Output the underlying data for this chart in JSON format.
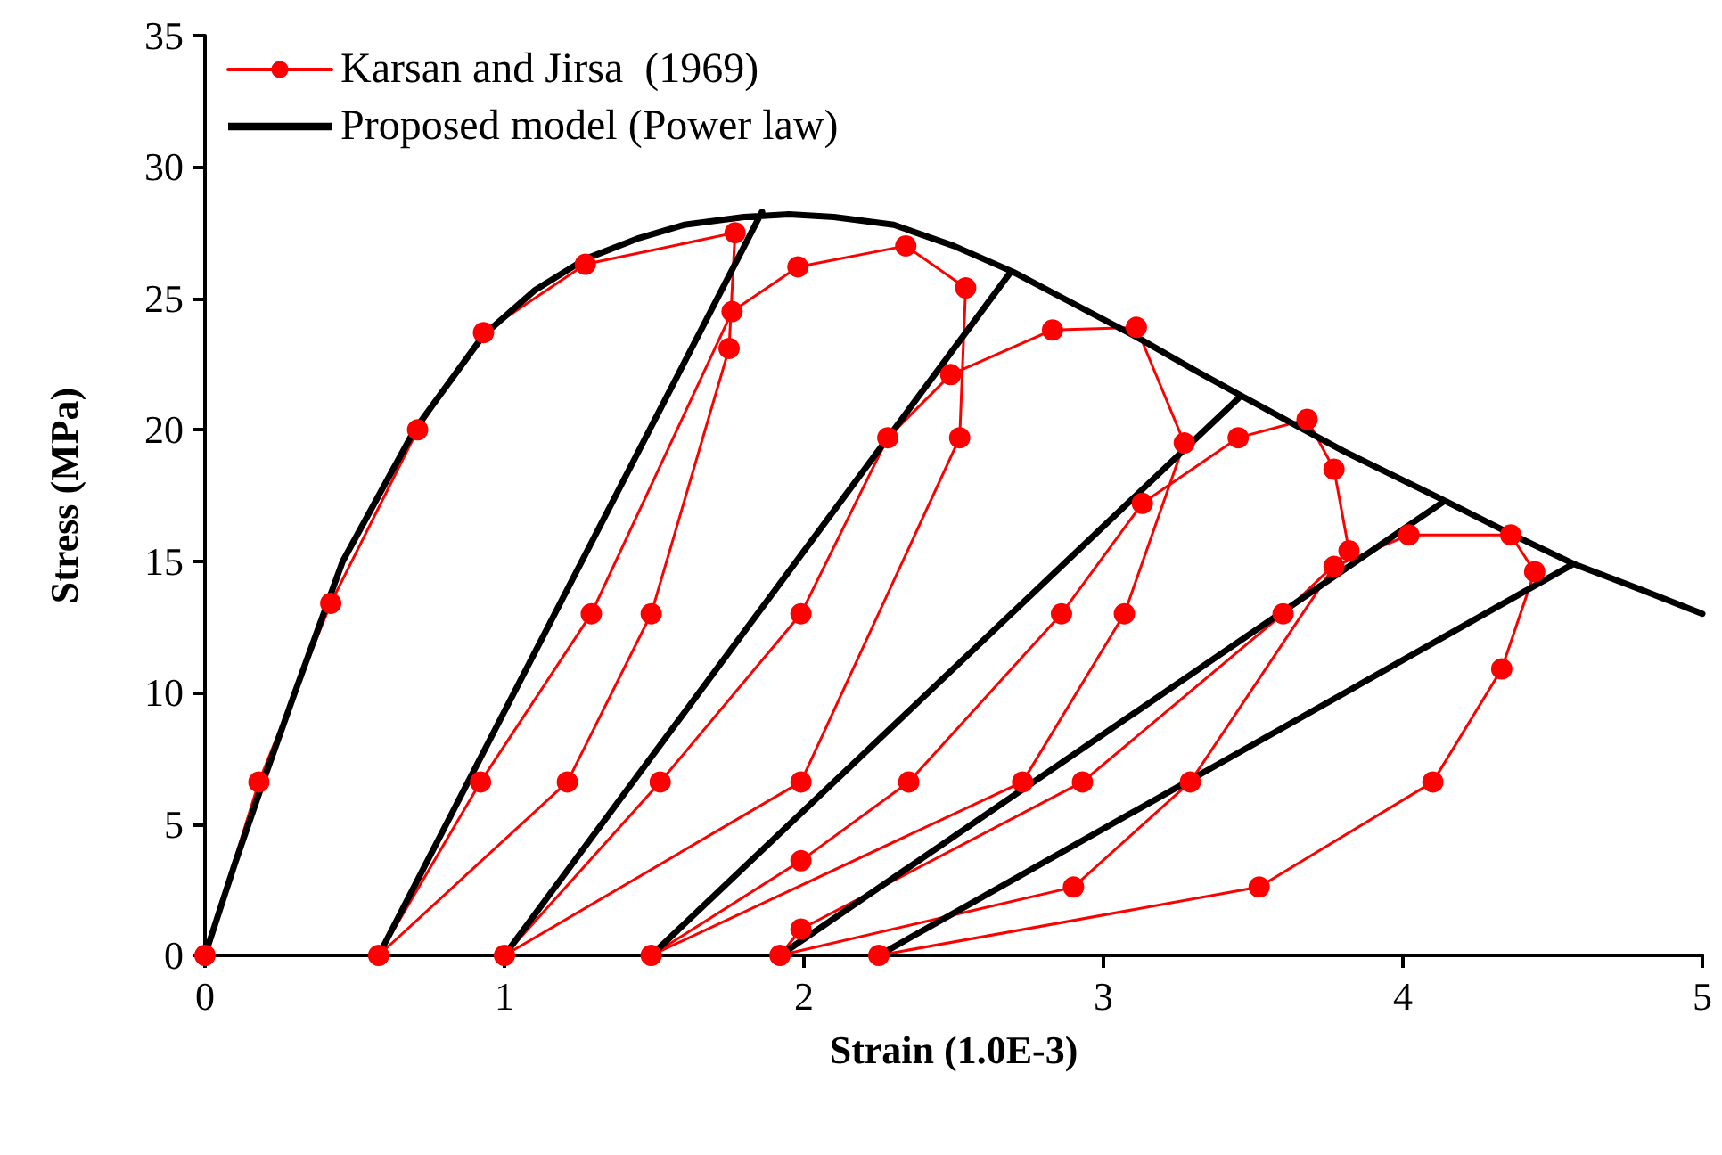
{
  "chart_data": {
    "type": "line",
    "xlabel": "Strain (1.0E-3)",
    "ylabel": "Stress (MPa)",
    "xlim": [
      0,
      5
    ],
    "xticks": [
      0,
      1,
      2,
      3,
      4,
      5
    ],
    "ylim": [
      0,
      35
    ],
    "yticks": [
      0,
      5,
      10,
      15,
      20,
      25,
      30,
      35
    ],
    "grid": false,
    "legend": "top left",
    "line_style": "solid",
    "series": [
      {
        "name": "Karsan and Jirsa  (1969)",
        "color": "#ff0000",
        "marker": "circle",
        "x": [
          0,
          0.18,
          0.42,
          0.71,
          0.93,
          1.27,
          1.77,
          1.75,
          1.49,
          1.21,
          0.58,
          0.92,
          1.29,
          1.76,
          1.98,
          2.34,
          2.54,
          2.52,
          1.99,
          1.0,
          1.52,
          1.99,
          2.28,
          2.49,
          2.83,
          3.11,
          3.27,
          3.07,
          2.73,
          1.49,
          1.99,
          2.35,
          2.86,
          3.13,
          3.45,
          3.68,
          3.77,
          3.82,
          3.6,
          2.93,
          1.99,
          1.92,
          2.9,
          3.29,
          3.77,
          4.02,
          4.36,
          4.44,
          4.33,
          4.1,
          3.52,
          2.25
        ],
        "values": [
          0,
          6.6,
          13.4,
          20.0,
          23.7,
          26.3,
          27.5,
          23.1,
          13.0,
          6.6,
          0,
          6.6,
          13.0,
          24.5,
          26.2,
          27.0,
          25.4,
          19.7,
          6.6,
          0,
          6.6,
          13.0,
          19.7,
          22.1,
          23.8,
          23.9,
          19.5,
          13.0,
          6.6,
          0,
          3.6,
          6.6,
          13.0,
          17.2,
          19.7,
          20.4,
          18.5,
          15.4,
          13.0,
          6.6,
          1.0,
          0,
          2.6,
          6.6,
          14.8,
          16.0,
          16.0,
          14.6,
          10.9,
          6.6,
          2.6,
          0
        ]
      },
      {
        "name": "Proposed model (Power law)",
        "color": "#000000",
        "marker": "none",
        "x": [
          0,
          0.1,
          0.2,
          0.3,
          0.46,
          0.7,
          0.93,
          1.1,
          1.27,
          1.45,
          1.6,
          1.8,
          1.95,
          2.1,
          2.3,
          2.5,
          2.7,
          2.9,
          3.1,
          3.3,
          3.46,
          3.8,
          4.14,
          4.35,
          4.57,
          4.8,
          5,
          null,
          0.58,
          1.86,
          null,
          1.0,
          2.69,
          null,
          1.49,
          3.46,
          null,
          1.92,
          4.14,
          null,
          2.25,
          4.57
        ],
        "values": [
          0,
          3.5,
          6.8,
          10.0,
          15.0,
          20.0,
          23.6,
          25.3,
          26.5,
          27.3,
          27.8,
          28.1,
          28.2,
          28.1,
          27.8,
          27.0,
          26.0,
          24.8,
          23.6,
          22.3,
          21.3,
          19.2,
          17.3,
          16.1,
          14.9,
          13.9,
          13.0,
          null,
          0,
          28.3,
          null,
          0,
          26.0,
          null,
          0,
          21.3,
          null,
          0,
          17.3,
          null,
          0,
          14.9
        ]
      }
    ]
  }
}
